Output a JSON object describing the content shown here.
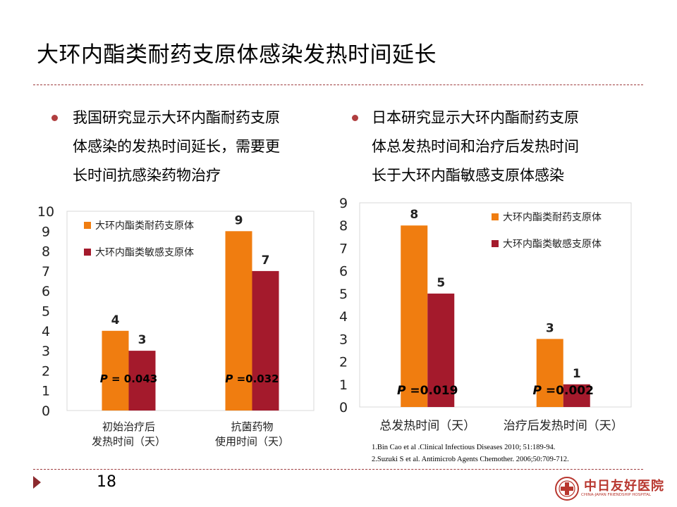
{
  "title": "大环内酯类耐药支原体感染发热时间延长",
  "bullets": [
    {
      "lines": [
        "我国研究显示大环内酯耐药支原",
        "体感染的发热时间延长，需要更",
        "长时间抗感染药物治疗"
      ]
    },
    {
      "lines": [
        "日本研究显示大环内酯耐药支原",
        "体总发热时间和治疗后发热时间",
        "长于大环内酯敏感支原体感染"
      ]
    }
  ],
  "colors": {
    "resistant": "#f07d10",
    "sensitive": "#a41a2c",
    "accent": "#b03e3f",
    "grid": "#d9d9d9"
  },
  "chart_data": [
    {
      "type": "bar",
      "categories": [
        [
          "初始治疗后",
          "发热时间（天）"
        ],
        [
          "抗菌药物",
          "使用时间（天）"
        ]
      ],
      "series": [
        {
          "name": "大环内酯类耐药支原体",
          "values": [
            4,
            9
          ]
        },
        {
          "name": "大环内酯类敏感支原体",
          "values": [
            3,
            7
          ]
        }
      ],
      "data_labels": [
        "4",
        "9",
        "3",
        "7"
      ],
      "ylim": [
        0,
        10
      ],
      "yticks": [
        0,
        1,
        2,
        3,
        4,
        5,
        6,
        7,
        8,
        9,
        10
      ],
      "annotations": [
        {
          "prefix": "P",
          "text": " = 0.043"
        },
        {
          "prefix": "P",
          "text": " =0.032"
        }
      ],
      "legend": "top-left"
    },
    {
      "type": "bar",
      "categories": [
        [
          "总发热时间（天）"
        ],
        [
          "治疗后发热时间（天）"
        ]
      ],
      "series": [
        {
          "name": "大环内酯类耐药支原体",
          "values": [
            8,
            3
          ]
        },
        {
          "name": "大环内酯类敏感支原体",
          "values": [
            5,
            1
          ]
        }
      ],
      "data_labels": [
        "8",
        "3",
        "5",
        "1"
      ],
      "ylim": [
        0,
        9
      ],
      "yticks": [
        0,
        1,
        2,
        3,
        4,
        5,
        6,
        7,
        8,
        9
      ],
      "annotations": [
        {
          "prefix": "P",
          "text": " =0.019"
        },
        {
          "prefix": "P",
          "text": " =0.002"
        }
      ],
      "legend": "top-right"
    }
  ],
  "references": [
    "1.Bin Cao et al .Clinical Infectious Diseases 2010; 51:189-94.",
    "2.Suzuki S et al. Antimicrob Agents Chemother. 2006;50:709-712."
  ],
  "page_number": "18",
  "logo": {
    "cn": "中日友好医院",
    "en": "CHINA-JAPAN FRIENDSHIP HOSPITAL"
  }
}
